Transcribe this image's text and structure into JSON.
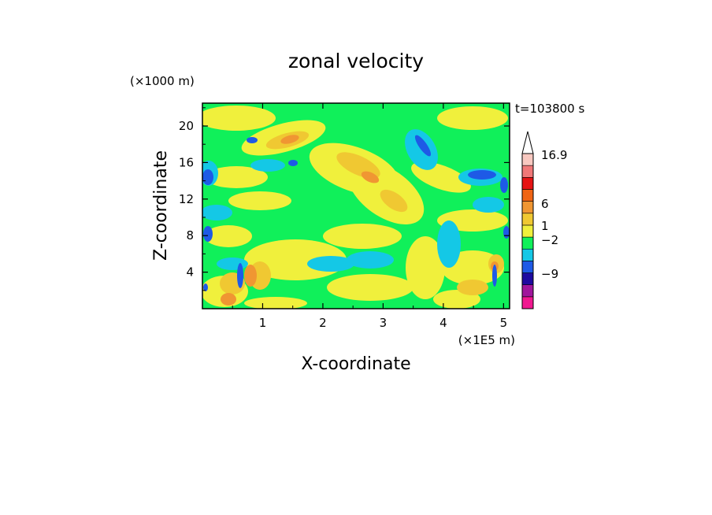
{
  "chart_data": {
    "type": "heatmap",
    "title": "zonal velocity",
    "xlabel": "X-coordinate",
    "ylabel": "Z-coordinate",
    "x_unit": "(×1E5 m)",
    "y_unit": "(×1000 m)",
    "time_label": "t=103800 s",
    "xlim": [
      0,
      5.1
    ],
    "ylim": [
      0,
      22.5
    ],
    "x_ticks": [
      1,
      2,
      3,
      4,
      5
    ],
    "y_ticks": [
      4,
      8,
      12,
      16,
      20
    ],
    "colorbar": {
      "levels": [
        -9,
        -2,
        1,
        6,
        16.9
      ],
      "labels": [
        "16.9",
        "6",
        "1",
        "−2",
        "−9"
      ],
      "colors": [
        "#f01890",
        "#a0169c",
        "#1e0aa0",
        "#1e5ae6",
        "#14c8e6",
        "#10f05a",
        "#f0f03c",
        "#f0c832",
        "#f09632",
        "#f06414",
        "#e61414",
        "#f07878",
        "#f8c8c0"
      ],
      "extend_max": true
    }
  }
}
